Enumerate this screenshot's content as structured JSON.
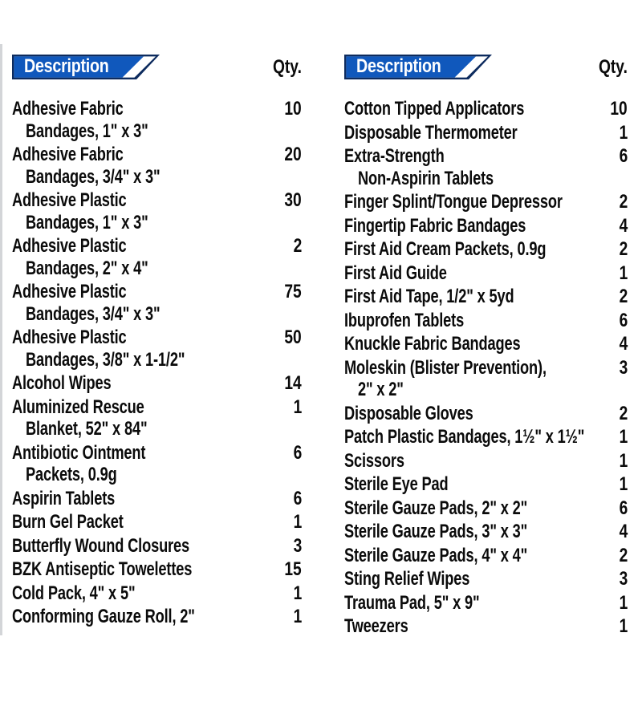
{
  "colors": {
    "banner_blue": "#1058BC",
    "banner_navy": "#0D2B5E",
    "banner_text": "#ffffff",
    "body_text": "#0b0b0b"
  },
  "columns": [
    {
      "header": {
        "description_label": "Description",
        "qty_label": "Qty."
      },
      "items": [
        {
          "lines": [
            "Adhesive Fabric",
            "Bandages, 1\" x 3\""
          ],
          "qty": "10"
        },
        {
          "lines": [
            "Adhesive Fabric",
            "Bandages, 3/4\" x 3\""
          ],
          "qty": "20"
        },
        {
          "lines": [
            "Adhesive Plastic",
            "Bandages, 1\" x 3\""
          ],
          "qty": "30"
        },
        {
          "lines": [
            "Adhesive Plastic",
            "Bandages, 2\" x 4\""
          ],
          "qty": "2"
        },
        {
          "lines": [
            "Adhesive Plastic",
            "Bandages, 3/4\" x 3\""
          ],
          "qty": "75"
        },
        {
          "lines": [
            "Adhesive Plastic",
            "Bandages, 3/8\" x 1-1/2\""
          ],
          "qty": "50"
        },
        {
          "lines": [
            "Alcohol Wipes"
          ],
          "qty": "14"
        },
        {
          "lines": [
            "Aluminized Rescue",
            "Blanket, 52\" x 84\""
          ],
          "qty": "1"
        },
        {
          "lines": [
            "Antibiotic Ointment",
            "Packets, 0.9g"
          ],
          "qty": "6"
        },
        {
          "lines": [
            "Aspirin Tablets"
          ],
          "qty": "6"
        },
        {
          "lines": [
            "Burn Gel Packet"
          ],
          "qty": "1"
        },
        {
          "lines": [
            "Butterfly Wound Closures"
          ],
          "qty": "3"
        },
        {
          "lines": [
            "BZK Antiseptic Towelettes"
          ],
          "qty": "15"
        },
        {
          "lines": [
            "Cold Pack, 4\" x 5\""
          ],
          "qty": "1"
        },
        {
          "lines": [
            "Conforming Gauze Roll, 2\""
          ],
          "qty": "1"
        }
      ]
    },
    {
      "header": {
        "description_label": "Description",
        "qty_label": "Qty."
      },
      "items": [
        {
          "lines": [
            "Cotton Tipped Applicators"
          ],
          "qty": "10"
        },
        {
          "lines": [
            "Disposable Thermometer"
          ],
          "qty": "1"
        },
        {
          "lines": [
            "Extra-Strength",
            "Non-Aspirin Tablets"
          ],
          "qty": "6"
        },
        {
          "lines": [
            "Finger Splint/Tongue Depressor"
          ],
          "qty": "2"
        },
        {
          "lines": [
            "Fingertip Fabric Bandages"
          ],
          "qty": "4"
        },
        {
          "lines": [
            "First Aid Cream Packets, 0.9g"
          ],
          "qty": "2"
        },
        {
          "lines": [
            "First Aid Guide"
          ],
          "qty": "1"
        },
        {
          "lines": [
            "First Aid Tape, 1/2\" x 5yd"
          ],
          "qty": "2"
        },
        {
          "lines": [
            "Ibuprofen Tablets"
          ],
          "qty": "6"
        },
        {
          "lines": [
            "Knuckle Fabric Bandages"
          ],
          "qty": "4"
        },
        {
          "lines": [
            "Moleskin (Blister Prevention),",
            "2\" x 2\""
          ],
          "qty": "3"
        },
        {
          "lines": [
            "Disposable Gloves"
          ],
          "qty": "2"
        },
        {
          "lines": [
            "Patch Plastic Bandages, 1½\" x 1½\""
          ],
          "qty": "1"
        },
        {
          "lines": [
            "Scissors"
          ],
          "qty": "1"
        },
        {
          "lines": [
            "Sterile Eye Pad"
          ],
          "qty": "1"
        },
        {
          "lines": [
            "Sterile Gauze Pads, 2\" x 2\""
          ],
          "qty": "6"
        },
        {
          "lines": [
            "Sterile Gauze Pads, 3\" x 3\""
          ],
          "qty": "4"
        },
        {
          "lines": [
            "Sterile Gauze Pads, 4\" x 4\""
          ],
          "qty": "2"
        },
        {
          "lines": [
            "Sting Relief Wipes"
          ],
          "qty": "3"
        },
        {
          "lines": [
            "Trauma Pad, 5\" x 9\""
          ],
          "qty": "1"
        },
        {
          "lines": [
            "Tweezers"
          ],
          "qty": "1"
        }
      ]
    }
  ]
}
